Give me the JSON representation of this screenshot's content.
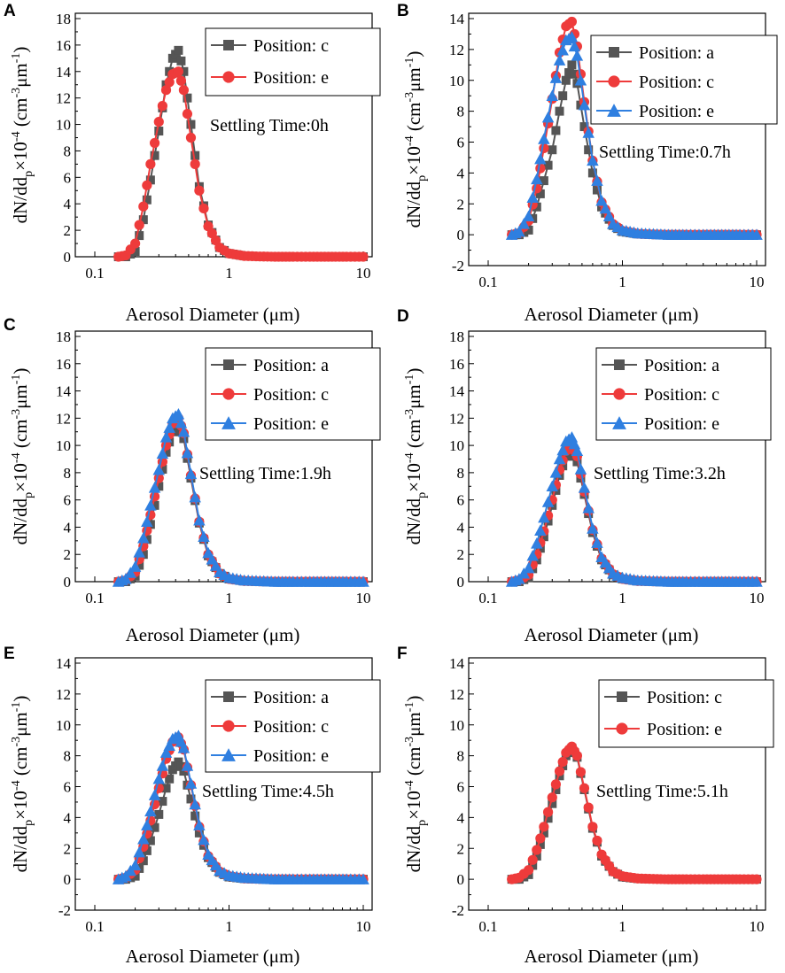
{
  "figure_title": "",
  "colors": {
    "series_a": "#555555",
    "series_c": "#ee3b3b",
    "series_e": "#2f7fe0"
  },
  "chart_data": [
    {
      "panel": "A",
      "type": "scatter",
      "title": "",
      "xlabel": "Aerosol Diameter (μm)",
      "xscale": "log",
      "xlim": [
        0.1,
        10
      ],
      "xticks": [
        "0.1",
        "1",
        "10"
      ],
      "ylim": [
        0,
        18
      ],
      "yticks": [
        "0",
        "2",
        "4",
        "6",
        "8",
        "10",
        "12",
        "14",
        "16",
        "18"
      ],
      "annotation": "Settling Time:0h",
      "series": [
        {
          "name": "Position: c",
          "marker": "square",
          "color": "#555555",
          "x": [
            0.15,
            0.17,
            0.2,
            0.23,
            0.26,
            0.3,
            0.34,
            0.38,
            0.42,
            0.46,
            0.52,
            0.6,
            0.7,
            0.85,
            1.0,
            1.3,
            1.7,
            2.2,
            3,
            4,
            5.5,
            7.5,
            10
          ],
          "y": [
            0,
            0,
            0.4,
            2.8,
            5.8,
            9.5,
            13,
            15,
            15.6,
            14,
            10,
            5.3,
            2.4,
            0.7,
            0.25,
            0.06,
            0.02,
            0,
            0,
            0,
            0,
            0,
            0
          ]
        },
        {
          "name": "Position: e",
          "marker": "circle",
          "color": "#ee3b3b",
          "x": [
            0.15,
            0.17,
            0.2,
            0.23,
            0.26,
            0.3,
            0.34,
            0.38,
            0.42,
            0.46,
            0.52,
            0.6,
            0.7,
            0.85,
            1.0,
            1.3,
            1.7,
            2.2,
            3,
            4,
            5.5,
            7.5,
            10
          ],
          "y": [
            0,
            0.1,
            1,
            3.8,
            7,
            10.2,
            12.6,
            13.8,
            14,
            12.6,
            9,
            5,
            2.3,
            0.7,
            0.25,
            0.06,
            0.02,
            0,
            0,
            0,
            0,
            0,
            0
          ]
        }
      ]
    },
    {
      "panel": "B",
      "type": "scatter",
      "title": "",
      "xlabel": "Aerosol Diameter (μm)",
      "xscale": "log",
      "xlim": [
        0.1,
        10
      ],
      "xticks": [
        "0.1",
        "1",
        "10"
      ],
      "ylim": [
        -2,
        14
      ],
      "yticks": [
        "-2",
        "0",
        "2",
        "4",
        "6",
        "8",
        "10",
        "12",
        "14"
      ],
      "annotation": "Settling Time:0.7h",
      "series": [
        {
          "name": "Position: a",
          "marker": "square",
          "color": "#555555",
          "x": [
            0.15,
            0.17,
            0.2,
            0.23,
            0.26,
            0.3,
            0.34,
            0.38,
            0.42,
            0.46,
            0.52,
            0.6,
            0.7,
            0.85,
            1.0,
            1.3,
            1.7,
            2.2,
            3,
            4,
            5.5,
            7.5,
            10
          ],
          "y": [
            0,
            0,
            0.3,
            1.8,
            3.5,
            5.5,
            8,
            10,
            11,
            9.8,
            7,
            4,
            1.8,
            0.6,
            0.2,
            0.05,
            0.02,
            0,
            0,
            0,
            0,
            0,
            0
          ]
        },
        {
          "name": "Position: c",
          "marker": "circle",
          "color": "#ee3b3b",
          "x": [
            0.15,
            0.17,
            0.2,
            0.23,
            0.26,
            0.3,
            0.34,
            0.38,
            0.42,
            0.46,
            0.52,
            0.6,
            0.7,
            0.85,
            1.0,
            1.3,
            1.7,
            2.2,
            3,
            4,
            5.5,
            7.5,
            10
          ],
          "y": [
            0,
            0.1,
            0.9,
            3,
            5.6,
            8.8,
            11.8,
            13.5,
            13.8,
            12.2,
            8.6,
            4.8,
            2.1,
            0.7,
            0.25,
            0.06,
            0.02,
            0,
            0,
            0,
            0,
            0,
            0
          ]
        },
        {
          "name": "Position: e",
          "marker": "triangle",
          "color": "#2f7fe0",
          "x": [
            0.15,
            0.17,
            0.2,
            0.23,
            0.26,
            0.3,
            0.34,
            0.38,
            0.42,
            0.46,
            0.52,
            0.6,
            0.7,
            0.85,
            1.0,
            1.3,
            1.7,
            2.2,
            3,
            4,
            5.5,
            7.5,
            10
          ],
          "y": [
            0,
            0.2,
            1.2,
            3.6,
            6.2,
            9,
            11.3,
            12.6,
            12.8,
            11.6,
            8.4,
            4.8,
            2.2,
            0.7,
            0.3,
            0.1,
            0.05,
            0,
            0,
            0,
            0,
            0,
            0
          ]
        }
      ]
    },
    {
      "panel": "C",
      "type": "scatter",
      "title": "",
      "xlabel": "Aerosol Diameter (μm)",
      "xscale": "log",
      "xlim": [
        0.1,
        10
      ],
      "xticks": [
        "0.1",
        "1",
        "10"
      ],
      "ylim": [
        0,
        18
      ],
      "yticks": [
        "0",
        "2",
        "4",
        "6",
        "8",
        "10",
        "12",
        "14",
        "16",
        "18"
      ],
      "annotation": "Settling Time:1.9h",
      "series": [
        {
          "name": "Position: a",
          "marker": "square",
          "color": "#555555",
          "x": [
            0.15,
            0.17,
            0.2,
            0.23,
            0.26,
            0.3,
            0.34,
            0.38,
            0.42,
            0.46,
            0.52,
            0.6,
            0.7,
            0.85,
            1.0,
            1.3,
            1.7,
            2.2,
            3,
            4,
            5.5,
            7.5,
            10
          ],
          "y": [
            0,
            0,
            0.4,
            2,
            4.2,
            7,
            9.5,
            11,
            11.5,
            10.5,
            7.6,
            4.3,
            1.9,
            0.6,
            0.2,
            0.05,
            0.02,
            0,
            0,
            0,
            0,
            0,
            0
          ]
        },
        {
          "name": "Position: c",
          "marker": "circle",
          "color": "#ee3b3b",
          "x": [
            0.15,
            0.17,
            0.2,
            0.23,
            0.26,
            0.3,
            0.34,
            0.38,
            0.42,
            0.46,
            0.52,
            0.6,
            0.7,
            0.85,
            1.0,
            1.3,
            1.7,
            2.2,
            3,
            4,
            5.5,
            7.5,
            10
          ],
          "y": [
            0,
            0.1,
            0.7,
            2.6,
            4.9,
            7.6,
            10,
            11.6,
            12,
            10.9,
            7.8,
            4.4,
            2,
            0.6,
            0.2,
            0.05,
            0.02,
            0,
            0,
            0,
            0,
            0,
            0
          ]
        },
        {
          "name": "Position: e",
          "marker": "triangle",
          "color": "#2f7fe0",
          "x": [
            0.15,
            0.17,
            0.2,
            0.23,
            0.26,
            0.3,
            0.34,
            0.38,
            0.42,
            0.46,
            0.52,
            0.6,
            0.7,
            0.85,
            1.0,
            1.3,
            1.7,
            2.2,
            3,
            4,
            5.5,
            7.5,
            10
          ],
          "y": [
            0,
            0.2,
            1.1,
            3.2,
            5.6,
            8.2,
            10.6,
            12,
            12.3,
            11,
            7.9,
            4.5,
            2.1,
            0.7,
            0.3,
            0.1,
            0.05,
            0,
            0,
            0,
            0,
            0,
            0
          ]
        }
      ]
    },
    {
      "panel": "D",
      "type": "scatter",
      "title": "",
      "xlabel": "Aerosol Diameter (μm)",
      "xscale": "log",
      "xlim": [
        0.1,
        10
      ],
      "xticks": [
        "0.1",
        "1",
        "10"
      ],
      "ylim": [
        0,
        18
      ],
      "yticks": [
        "0",
        "2",
        "4",
        "6",
        "8",
        "10",
        "12",
        "14",
        "16",
        "18"
      ],
      "annotation": "Settling Time:3.2h",
      "series": [
        {
          "name": "Position: a",
          "marker": "square",
          "color": "#555555",
          "x": [
            0.15,
            0.17,
            0.2,
            0.23,
            0.26,
            0.3,
            0.34,
            0.38,
            0.42,
            0.46,
            0.52,
            0.6,
            0.7,
            0.85,
            1.0,
            1.3,
            1.7,
            2.2,
            3,
            4,
            5.5,
            7.5,
            10
          ],
          "y": [
            0,
            0,
            0.3,
            1.6,
            3.3,
            5.6,
            7.8,
            9.2,
            9.6,
            8.8,
            6.4,
            3.6,
            1.6,
            0.5,
            0.2,
            0.05,
            0.02,
            0,
            0,
            0,
            0,
            0,
            0
          ]
        },
        {
          "name": "Position: c",
          "marker": "circle",
          "color": "#ee3b3b",
          "x": [
            0.15,
            0.17,
            0.2,
            0.23,
            0.26,
            0.3,
            0.34,
            0.38,
            0.42,
            0.46,
            0.52,
            0.6,
            0.7,
            0.85,
            1.0,
            1.3,
            1.7,
            2.2,
            3,
            4,
            5.5,
            7.5,
            10
          ],
          "y": [
            0,
            0.1,
            0.5,
            2,
            3.7,
            6,
            8.2,
            9.6,
            10,
            9.2,
            6.6,
            3.8,
            1.7,
            0.55,
            0.2,
            0.05,
            0.02,
            0,
            0,
            0,
            0,
            0,
            0
          ]
        },
        {
          "name": "Position: e",
          "marker": "triangle",
          "color": "#2f7fe0",
          "x": [
            0.15,
            0.17,
            0.2,
            0.23,
            0.26,
            0.3,
            0.34,
            0.38,
            0.42,
            0.46,
            0.52,
            0.6,
            0.7,
            0.85,
            1.0,
            1.3,
            1.7,
            2.2,
            3,
            4,
            5.5,
            7.5,
            10
          ],
          "y": [
            0,
            0.2,
            1,
            2.8,
            4.7,
            7,
            9,
            10.3,
            10.6,
            9.6,
            6.9,
            3.9,
            1.8,
            0.6,
            0.3,
            0.1,
            0.05,
            0,
            0,
            0,
            0,
            0,
            0
          ]
        }
      ]
    },
    {
      "panel": "E",
      "type": "scatter",
      "title": "",
      "xlabel": "Aerosol Diameter (μm)",
      "xscale": "log",
      "xlim": [
        0.1,
        10
      ],
      "xticks": [
        "0.1",
        "1",
        "10"
      ],
      "ylim": [
        -2,
        14
      ],
      "yticks": [
        "-2",
        "0",
        "2",
        "4",
        "6",
        "8",
        "10",
        "12",
        "14"
      ],
      "annotation": "Settling Time:4.5h",
      "series": [
        {
          "name": "Position: a",
          "marker": "square",
          "color": "#555555",
          "x": [
            0.15,
            0.17,
            0.2,
            0.23,
            0.26,
            0.3,
            0.34,
            0.38,
            0.42,
            0.46,
            0.52,
            0.6,
            0.7,
            0.85,
            1.0,
            1.3,
            1.7,
            2.2,
            3,
            4,
            5.5,
            7.5,
            10
          ],
          "y": [
            0,
            0,
            0.2,
            1.2,
            2.5,
            4.2,
            5.9,
            7.1,
            7.6,
            7,
            5.2,
            3,
            1.4,
            0.45,
            0.15,
            0.04,
            0.01,
            0,
            0,
            0,
            0,
            0,
            0
          ]
        },
        {
          "name": "Position: c",
          "marker": "circle",
          "color": "#ee3b3b",
          "x": [
            0.15,
            0.17,
            0.2,
            0.23,
            0.26,
            0.3,
            0.34,
            0.38,
            0.42,
            0.46,
            0.52,
            0.6,
            0.7,
            0.85,
            1.0,
            1.3,
            1.7,
            2.2,
            3,
            4,
            5.5,
            7.5,
            10
          ],
          "y": [
            0,
            0.1,
            0.6,
            2.1,
            3.8,
            5.9,
            7.8,
            8.9,
            9.2,
            8.4,
            6.1,
            3.4,
            1.5,
            0.5,
            0.2,
            0.05,
            0.02,
            0,
            0,
            0,
            0,
            0,
            0
          ]
        },
        {
          "name": "Position: e",
          "marker": "triangle",
          "color": "#2f7fe0",
          "x": [
            0.15,
            0.17,
            0.2,
            0.23,
            0.26,
            0.3,
            0.34,
            0.38,
            0.42,
            0.46,
            0.52,
            0.6,
            0.7,
            0.85,
            1.0,
            1.3,
            1.7,
            2.2,
            3,
            4,
            5.5,
            7.5,
            10
          ],
          "y": [
            0,
            0.2,
            0.9,
            2.6,
            4.4,
            6.5,
            8.2,
            9.1,
            9.3,
            8.5,
            6.2,
            3.5,
            1.6,
            0.55,
            0.25,
            0.1,
            0.05,
            0,
            0,
            0,
            0,
            0,
            0
          ]
        }
      ]
    },
    {
      "panel": "F",
      "type": "scatter",
      "title": "",
      "xlabel": "Aerosol Diameter (μm)",
      "xscale": "log",
      "xlim": [
        0.1,
        10
      ],
      "xticks": [
        "0.1",
        "1",
        "10"
      ],
      "ylim": [
        -2,
        14
      ],
      "yticks": [
        "-2",
        "0",
        "2",
        "4",
        "6",
        "8",
        "10",
        "12",
        "14"
      ],
      "annotation": "Settling Time:5.1h",
      "series": [
        {
          "name": "Position: c",
          "marker": "square",
          "color": "#555555",
          "x": [
            0.15,
            0.17,
            0.2,
            0.23,
            0.26,
            0.3,
            0.34,
            0.38,
            0.42,
            0.46,
            0.52,
            0.6,
            0.7,
            0.85,
            1.0,
            1.3,
            1.7,
            2.2,
            3,
            4,
            5.5,
            7.5,
            10
          ],
          "y": [
            0,
            0,
            0.3,
            1.5,
            3,
            4.9,
            6.7,
            8,
            8.5,
            7.9,
            5.8,
            3.3,
            1.5,
            0.5,
            0.15,
            0.04,
            0.01,
            0,
            0,
            0,
            0,
            0,
            0
          ]
        },
        {
          "name": "Position: e",
          "marker": "circle",
          "color": "#ee3b3b",
          "x": [
            0.15,
            0.17,
            0.2,
            0.23,
            0.26,
            0.3,
            0.34,
            0.38,
            0.42,
            0.46,
            0.52,
            0.6,
            0.7,
            0.85,
            1.0,
            1.3,
            1.7,
            2.2,
            3,
            4,
            5.5,
            7.5,
            10
          ],
          "y": [
            0,
            0.1,
            0.6,
            1.9,
            3.4,
            5.3,
            7,
            8.2,
            8.6,
            8,
            5.9,
            3.4,
            1.6,
            0.5,
            0.2,
            0.05,
            0.02,
            0,
            0,
            0,
            0,
            0,
            0
          ]
        }
      ]
    }
  ]
}
